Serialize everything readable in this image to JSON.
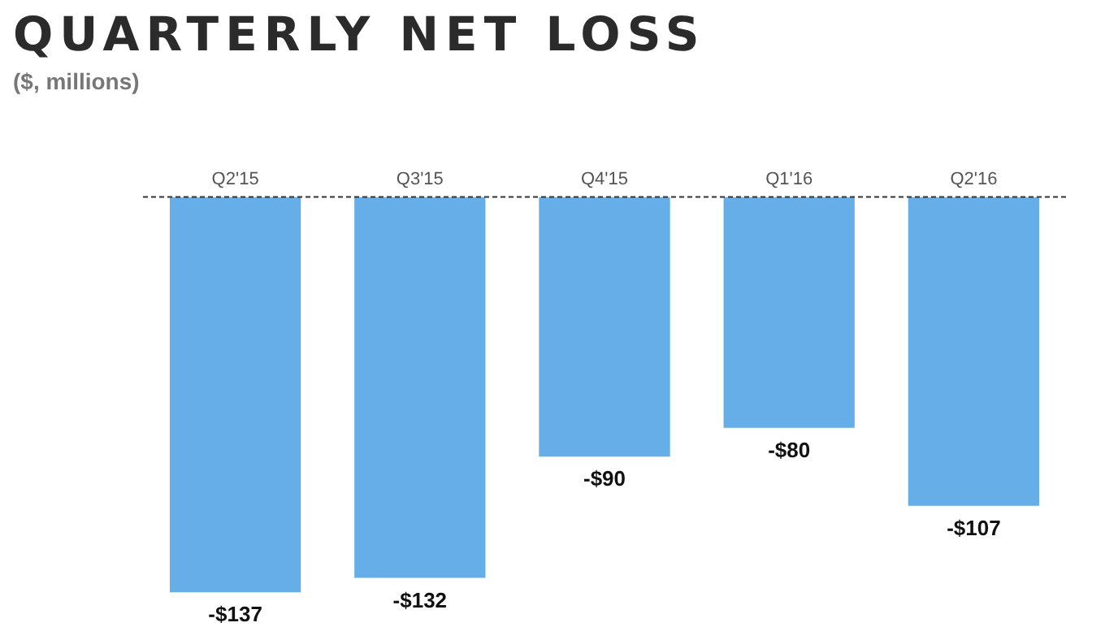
{
  "chart_data": {
    "type": "bar",
    "title": "QUARTERLY NET LOSS",
    "subtitle": "($, millions)",
    "categories": [
      "Q2'15",
      "Q3'15",
      "Q4'15",
      "Q1'16",
      "Q2'16"
    ],
    "values": [
      -137,
      -132,
      -90,
      -80,
      -107
    ],
    "value_labels": [
      "-$137",
      "-$132",
      "-$90",
      "-$80",
      "-$107"
    ],
    "color": "#66aee8",
    "ref_lines": [
      {
        "axis": "y",
        "value": 0,
        "line_style": "dashed",
        "color": "#333333"
      }
    ],
    "grid": false,
    "legend": false
  }
}
